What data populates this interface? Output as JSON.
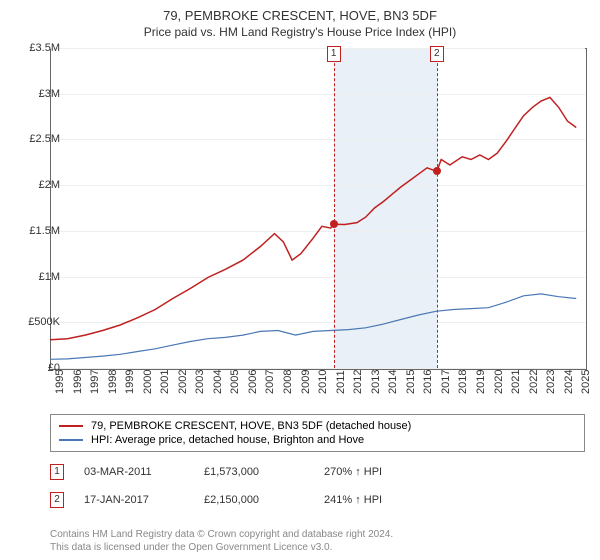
{
  "title": "79, PEMBROKE CRESCENT, HOVE, BN3 5DF",
  "subtitle": "Price paid vs. HM Land Registry's House Price Index (HPI)",
  "chart": {
    "type": "line",
    "background_color": "#ffffff",
    "border_color": "#666666",
    "grid_color": "#eeeeee",
    "shaded_color": "#eaf0f7",
    "x_range": [
      1995,
      2025.5
    ],
    "x_ticks": [
      "1995",
      "1996",
      "1997",
      "1998",
      "1999",
      "2000",
      "2001",
      "2002",
      "2003",
      "2004",
      "2005",
      "2006",
      "2007",
      "2008",
      "2009",
      "2010",
      "2011",
      "2012",
      "2013",
      "2014",
      "2015",
      "2016",
      "2017",
      "2018",
      "2019",
      "2020",
      "2021",
      "2022",
      "2023",
      "2024",
      "2025"
    ],
    "y_range": [
      0,
      3500000
    ],
    "y_ticks": [
      {
        "v": 0,
        "label": "£0"
      },
      {
        "v": 500000,
        "label": "£500K"
      },
      {
        "v": 1000000,
        "label": "£1M"
      },
      {
        "v": 1500000,
        "label": "£1.5M"
      },
      {
        "v": 2000000,
        "label": "£2M"
      },
      {
        "v": 2500000,
        "label": "£2.5M"
      },
      {
        "v": 3000000,
        "label": "£3M"
      },
      {
        "v": 3500000,
        "label": "£3.5M"
      }
    ],
    "shaded_band": {
      "x_start": 2011.17,
      "x_end": 2017.05
    },
    "series_property": {
      "color": "#c02020",
      "width": 1.5,
      "points": [
        [
          1995,
          310000
        ],
        [
          1996,
          320000
        ],
        [
          1997,
          360000
        ],
        [
          1998,
          410000
        ],
        [
          1999,
          470000
        ],
        [
          2000,
          550000
        ],
        [
          2001,
          640000
        ],
        [
          2002,
          760000
        ],
        [
          2003,
          870000
        ],
        [
          2004,
          990000
        ],
        [
          2005,
          1080000
        ],
        [
          2006,
          1180000
        ],
        [
          2007,
          1330000
        ],
        [
          2007.8,
          1470000
        ],
        [
          2008.3,
          1380000
        ],
        [
          2008.8,
          1180000
        ],
        [
          2009.3,
          1250000
        ],
        [
          2010,
          1420000
        ],
        [
          2010.5,
          1550000
        ],
        [
          2011,
          1530000
        ],
        [
          2011.17,
          1573000
        ],
        [
          2011.8,
          1570000
        ],
        [
          2012.5,
          1590000
        ],
        [
          2013,
          1650000
        ],
        [
          2013.5,
          1750000
        ],
        [
          2014,
          1820000
        ],
        [
          2014.5,
          1900000
        ],
        [
          2015,
          1980000
        ],
        [
          2015.5,
          2050000
        ],
        [
          2016,
          2120000
        ],
        [
          2016.5,
          2190000
        ],
        [
          2017.05,
          2150000
        ],
        [
          2017.3,
          2280000
        ],
        [
          2017.8,
          2220000
        ],
        [
          2018.5,
          2310000
        ],
        [
          2019,
          2280000
        ],
        [
          2019.5,
          2330000
        ],
        [
          2020,
          2280000
        ],
        [
          2020.5,
          2350000
        ],
        [
          2021,
          2480000
        ],
        [
          2021.5,
          2620000
        ],
        [
          2022,
          2760000
        ],
        [
          2022.5,
          2850000
        ],
        [
          2023,
          2920000
        ],
        [
          2023.5,
          2960000
        ],
        [
          2024,
          2850000
        ],
        [
          2024.5,
          2700000
        ],
        [
          2025,
          2630000
        ]
      ]
    },
    "series_hpi": {
      "color": "#4a78b5",
      "width": 1.2,
      "points": [
        [
          1995,
          95000
        ],
        [
          1996,
          100000
        ],
        [
          1997,
          115000
        ],
        [
          1998,
          130000
        ],
        [
          1999,
          150000
        ],
        [
          2000,
          180000
        ],
        [
          2001,
          210000
        ],
        [
          2002,
          250000
        ],
        [
          2003,
          290000
        ],
        [
          2004,
          320000
        ],
        [
          2005,
          335000
        ],
        [
          2006,
          360000
        ],
        [
          2007,
          400000
        ],
        [
          2008,
          410000
        ],
        [
          2009,
          360000
        ],
        [
          2010,
          400000
        ],
        [
          2011,
          410000
        ],
        [
          2012,
          420000
        ],
        [
          2013,
          440000
        ],
        [
          2014,
          480000
        ],
        [
          2015,
          530000
        ],
        [
          2016,
          580000
        ],
        [
          2017,
          620000
        ],
        [
          2018,
          640000
        ],
        [
          2019,
          650000
        ],
        [
          2020,
          660000
        ],
        [
          2021,
          720000
        ],
        [
          2022,
          790000
        ],
        [
          2023,
          810000
        ],
        [
          2024,
          780000
        ],
        [
          2025,
          760000
        ]
      ]
    },
    "markers": [
      {
        "n": "1",
        "x": 2011.17,
        "y": 1573000
      },
      {
        "n": "2",
        "x": 2017.05,
        "y": 2150000
      }
    ]
  },
  "legend": {
    "items": [
      {
        "label": "79, PEMBROKE CRESCENT, HOVE, BN3 5DF (detached house)",
        "color": "#c02020"
      },
      {
        "label": "HPI: Average price, detached house, Brighton and Hove",
        "color": "#4a78b5"
      }
    ]
  },
  "sales": [
    {
      "n": "1",
      "date": "03-MAR-2011",
      "price": "£1,573,000",
      "hpi": "270% ↑ HPI"
    },
    {
      "n": "2",
      "date": "17-JAN-2017",
      "price": "£2,150,000",
      "hpi": "241% ↑ HPI"
    }
  ],
  "footer_line1": "Contains HM Land Registry data © Crown copyright and database right 2024.",
  "footer_line2": "This data is licensed under the Open Government Licence v3.0.",
  "tick_fontsize": 11,
  "title_fontsize": 13
}
